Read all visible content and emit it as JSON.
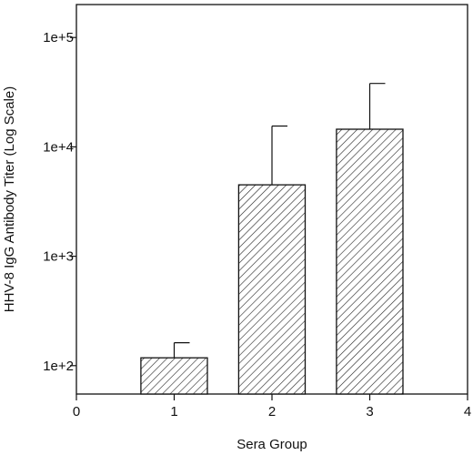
{
  "chart_data": {
    "type": "bar",
    "xlabel": "Sera Group",
    "ylabel": "HHV-8 IgG Antibody Titer (Log Scale)",
    "xlim": [
      0,
      4
    ],
    "ylim": [
      55,
      200000
    ],
    "yscale": "log",
    "xticks": [
      0,
      1,
      2,
      3,
      4
    ],
    "xtick_labels": [
      "0",
      "1",
      "2",
      "3",
      "4"
    ],
    "yticks": [
      100,
      1000,
      10000,
      100000
    ],
    "ytick_labels": [
      "1e+2",
      "1e+3",
      "1e+4",
      "1e+5"
    ],
    "x": [
      1,
      2,
      3
    ],
    "values": [
      118,
      4500,
      14500
    ],
    "error_upper": [
      162,
      15500,
      38000
    ],
    "bar_style": "diagonal-hatch",
    "grid": false,
    "legend": false
  }
}
